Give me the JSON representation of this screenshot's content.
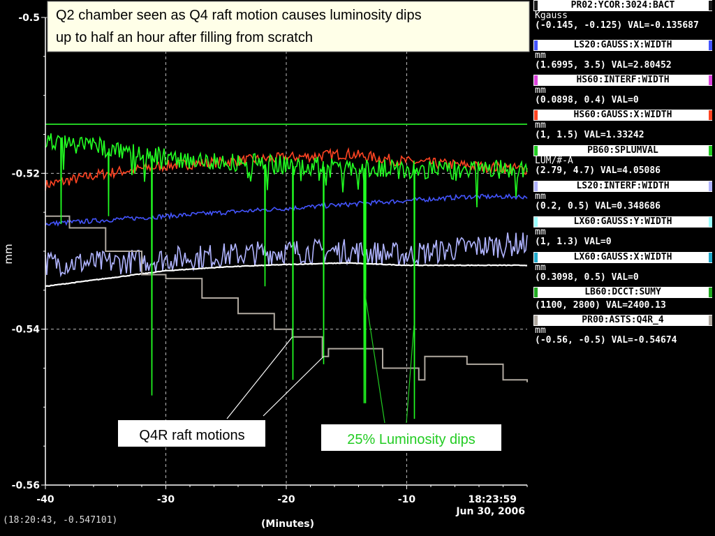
{
  "chart_data": {
    "type": "line",
    "title": "Q2 chamber seen as Q4 raft motion causes luminosity dips up to half an hour after filling from scratch",
    "title_lines": [
      "Q2 chamber seen as Q4 raft motion causes luminosity dips",
      "up to half an hour after filling from scratch"
    ],
    "xlabel": "(Minutes)",
    "ylabel": "mm",
    "xlim": [
      -40,
      0
    ],
    "ylim": [
      -0.56,
      -0.5
    ],
    "x_ticks": [
      "-40",
      "-30",
      "-20",
      "-10"
    ],
    "y_ticks": [
      "-0.5",
      "-0.52",
      "-0.54",
      "-0.56"
    ],
    "x_end_label": "18:23:59",
    "x_date_label": "Jun 30, 2006",
    "grid": true,
    "series": [
      {
        "name": "PR02:YCOR:3024:BACT",
        "color": "#22cc22",
        "x": [
          -40,
          0
        ],
        "y": [
          -0.5137,
          -0.5137
        ]
      },
      {
        "name": "HS60:GAUSS:X:WIDTH",
        "color": "#ff4422",
        "x": [
          -40,
          -35,
          -30,
          -25,
          -20,
          -15,
          -10,
          -5,
          0
        ],
        "y": [
          -0.5215,
          -0.52,
          -0.519,
          -0.5185,
          -0.518,
          -0.5175,
          -0.5185,
          -0.519,
          -0.5195
        ]
      },
      {
        "name": "LS20:GAUSS:X:WIDTH",
        "color": "#4455ff",
        "x": [
          -40,
          -35,
          -30,
          -25,
          -20,
          -15,
          -10,
          -5,
          0
        ],
        "y": [
          -0.5265,
          -0.526,
          -0.5255,
          -0.525,
          -0.5245,
          -0.524,
          -0.5235,
          -0.523,
          -0.523
        ]
      },
      {
        "name": "LS20:INTERF:WIDTH",
        "color": "#b0b4ff",
        "x": [
          -40,
          -35,
          -30,
          -25,
          -20,
          -15,
          -10,
          -5,
          0
        ],
        "y": [
          -0.5315,
          -0.5315,
          -0.531,
          -0.5305,
          -0.53,
          -0.53,
          -0.5305,
          -0.5295,
          -0.529
        ]
      },
      {
        "name": "LX60:GAUSS:Y:WIDTH",
        "color": "#ffffff",
        "x": [
          -40,
          -35,
          -30,
          -25,
          -20,
          -15,
          -10,
          -5,
          0
        ],
        "y": [
          -0.5345,
          -0.5335,
          -0.5325,
          -0.532,
          -0.5317,
          -0.5315,
          -0.5318,
          -0.5318,
          -0.5318
        ]
      },
      {
        "name": "PR00:ASTS:Q4R_4",
        "color": "#b0a9a0",
        "x": [
          -40,
          -38,
          -35,
          -32,
          -30,
          -27,
          -24,
          -21,
          -19.5,
          -17,
          -16.5,
          -12,
          -9,
          -8.5,
          -5,
          -2,
          0
        ],
        "y": [
          -0.5255,
          -0.527,
          -0.53,
          -0.533,
          -0.5335,
          -0.536,
          -0.538,
          -0.54,
          -0.541,
          -0.5435,
          -0.5425,
          -0.545,
          -0.5465,
          -0.5435,
          -0.5445,
          -0.5465,
          -0.5468
        ]
      },
      {
        "name": "PB60:SPLUMVAL",
        "color": "#22ff22",
        "base_x": [
          -40,
          -30,
          -20,
          -10,
          0
        ],
        "base_y": [
          -0.5155,
          -0.518,
          -0.519,
          -0.5195,
          -0.5195
        ],
        "dips": [
          {
            "x": -38.7,
            "y": -0.5265
          },
          {
            "x": -34.8,
            "y": -0.5255
          },
          {
            "x": -31.2,
            "y": -0.5485
          },
          {
            "x": -21.8,
            "y": -0.5345
          },
          {
            "x": -19.5,
            "y": -0.5465
          },
          {
            "x": -16.9,
            "y": -0.5445
          },
          {
            "x": -13.5,
            "y": -0.5495
          },
          {
            "x": -9.4,
            "y": -0.5515
          }
        ]
      }
    ],
    "annotations": [
      {
        "text": "Q4R raft motions",
        "color": "#000000",
        "box": "#ffffff",
        "points_to": [
          [
            -19.5,
            -0.541
          ],
          [
            -16.9,
            -0.5435
          ]
        ]
      },
      {
        "text": "25% Luminosity dips",
        "color": "#22ff22",
        "box": "#ffffff",
        "points_to": [
          [
            -13.5,
            -0.535
          ],
          [
            -9.4,
            -0.5395
          ]
        ]
      }
    ]
  },
  "legend": [
    {
      "name": "PR02:YCOR:3024:BACT",
      "unit": "Kgauss",
      "range": "(-0.145, -0.125)  VAL=-0.135687",
      "color": "#1a1a1a"
    },
    {
      "name": "LS20:GAUSS:X:WIDTH",
      "unit": "mm",
      "range": "(1.6995, 3.5) VAL=2.80452",
      "color": "#4455ff"
    },
    {
      "name": "HS60:INTERF:WIDTH",
      "unit": "mm",
      "range": "(0.0898, 0.4)  VAL=0",
      "color": "#dd44dd"
    },
    {
      "name": "HS60:GAUSS:X:WIDTH",
      "unit": "mm",
      "range": "(1, 1.5) VAL=1.33242",
      "color": "#ff4422"
    },
    {
      "name": "PB60:SPLUMVAL",
      "unit": "LUM/#-A",
      "range": "(2.79, 4.7) VAL=4.05086",
      "color": "#22cc22"
    },
    {
      "name": "LS20:INTERF:WIDTH",
      "unit": "mm",
      "range": "(0.2, 0.5) VAL=0.348686",
      "color": "#b0b4ff"
    },
    {
      "name": "LX60:GAUSS:Y:WIDTH",
      "unit": "mm",
      "range": "(1, 1.3)  VAL=0",
      "color": "#99ffff"
    },
    {
      "name": "LX60:GAUSS:X:WIDTH",
      "unit": "mm",
      "range": "(0.3098, 0.5)  VAL=0",
      "color": "#22aacc"
    },
    {
      "name": "LB60:DCCT:SUMY",
      "unit": "",
      "range": "(1100, 2800) VAL=2400.13",
      "color": "#22aa22"
    },
    {
      "name": "PR00:ASTS:Q4R_4",
      "unit": "mm",
      "range": "(-0.56, -0.5) VAL=-0.54674",
      "color": "#b0a9a0"
    }
  ],
  "status": {
    "cursor": "(18:20:43, -0.547101)"
  }
}
